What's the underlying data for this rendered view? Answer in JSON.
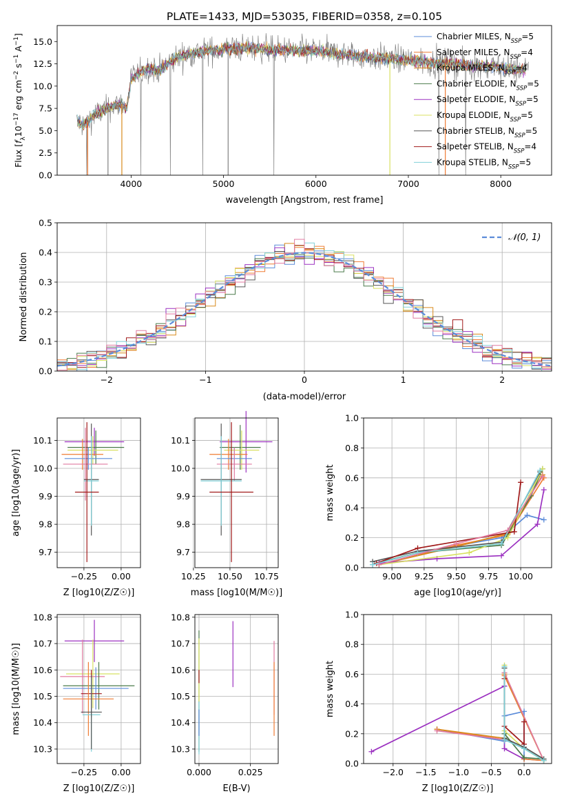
{
  "figure": {
    "title": "PLATE=1433, MJD=53035, FIBERID=0358, z=0.105"
  },
  "colors": {
    "Chabrier MILES": "#5b8bd9",
    "Salpeter MILES": "#ef7b33",
    "Kroupa MILES": "#d98a1b",
    "Chabrier ELODIE": "#4a7a4a",
    "Salpeter ELODIE": "#9b30c0",
    "Kroupa ELODIE": "#d8e060",
    "Chabrier STELIB": "#555555",
    "Salpeter STELIB": "#a01818",
    "Kroupa STELIB": "#7fd0d8",
    "pink": "#e07aa0",
    "data": "#808080"
  },
  "chart_data": [
    {
      "id": "spectrum",
      "type": "line",
      "xlabel": "wavelength [Angstrom, rest frame]",
      "ylabel": "Flux [f_λ 10^-17 erg cm^-2 s^-1 A^-1]",
      "xlim": [
        3200,
        8550
      ],
      "ylim": [
        0,
        16.8
      ],
      "xticks": [
        4000,
        5000,
        6000,
        7000,
        8000
      ],
      "yticks": [
        0.0,
        2.5,
        5.0,
        7.5,
        10.0,
        12.5,
        15.0
      ],
      "legend_position": "right",
      "legend": [
        {
          "imf": "Chabrier",
          "lib": "MILES",
          "nssp": "5"
        },
        {
          "imf": "Salpeter",
          "lib": "MILES",
          "nssp": "4"
        },
        {
          "imf": "Kroupa",
          "lib": "MILES",
          "nssp": "4"
        },
        {
          "imf": "Chabrier",
          "lib": "ELODIE",
          "nssp": "5"
        },
        {
          "imf": "Salpeter",
          "lib": "ELODIE",
          "nssp": "5"
        },
        {
          "imf": "Kroupa",
          "lib": "ELODIE",
          "nssp": "5"
        },
        {
          "imf": "Chabrier",
          "lib": "STELIB",
          "nssp": "5"
        },
        {
          "imf": "Salpeter",
          "lib": "STELIB",
          "nssp": "4"
        },
        {
          "imf": "Kroupa",
          "lib": "STELIB",
          "nssp": "5"
        }
      ],
      "continuum": {
        "x": [
          3410,
          3500,
          3600,
          3700,
          3800,
          3900,
          3950,
          4000,
          4100,
          4200,
          4300,
          4500,
          4700,
          4900,
          5100,
          5300,
          5500,
          5700,
          5900,
          6100,
          6300,
          6500,
          6700,
          6900,
          7100,
          7300,
          7500,
          7700,
          7900,
          8100,
          8300
        ],
        "y": [
          6.0,
          5.6,
          6.8,
          7.2,
          7.8,
          8.0,
          7.4,
          10.8,
          11.5,
          12.0,
          11.8,
          13.2,
          13.8,
          14.0,
          14.2,
          14.3,
          14.1,
          14.0,
          14.0,
          13.8,
          13.6,
          13.3,
          13.2,
          13.0,
          12.8,
          12.6,
          12.5,
          12.3,
          12.2,
          12.0,
          11.8
        ]
      }
    },
    {
      "id": "residuals",
      "type": "histogram",
      "xlabel": "(data-model)/error",
      "ylabel": "Normed distribution",
      "xlim": [
        -2.5,
        2.5
      ],
      "ylim": [
        0,
        0.5
      ],
      "xticks": [
        -2,
        -1,
        0,
        1,
        2
      ],
      "yticks": [
        0.0,
        0.1,
        0.2,
        0.3,
        0.4,
        0.5
      ],
      "bin_width": 0.1,
      "legend_label": "𝒩(0, 1)",
      "legend_position": "top-right",
      "curve": "normal(0,1)"
    },
    {
      "id": "age-vs-Z",
      "type": "errorbar",
      "xlabel": "Z [log10(Z/Z☉)]",
      "ylabel": "age [log10(age/yr)]",
      "xlim": [
        -0.43,
        0.13
      ],
      "ylim": [
        9.645,
        10.18
      ],
      "xticks": [
        -0.25,
        0.0
      ],
      "xtick_labels": [
        "−0.25",
        "0.00"
      ],
      "yticks": [
        9.7,
        9.8,
        9.9,
        10.0,
        10.1
      ],
      "points": [
        {
          "series": "Salpeter ELODIE",
          "x": -0.18,
          "xerr": 0.2,
          "y": 10.095,
          "yerr": 0.05
        },
        {
          "series": "Chabrier ELODIE",
          "x": -0.17,
          "xerr": 0.19,
          "y": 10.075,
          "yerr": 0.06
        },
        {
          "series": "Kroupa ELODIE",
          "x": -0.19,
          "xerr": 0.17,
          "y": 10.065,
          "yerr": 0.05
        },
        {
          "series": "Salpeter MILES",
          "x": -0.26,
          "xerr": 0.14,
          "y": 10.05,
          "yerr": 0.055
        },
        {
          "series": "Chabrier MILES",
          "x": -0.22,
          "xerr": 0.16,
          "y": 10.035,
          "yerr": 0.04
        },
        {
          "series": "pink",
          "x": -0.24,
          "xerr": 0.15,
          "y": 10.015,
          "yerr": 0.13
        },
        {
          "series": "Chabrier STELIB",
          "x": -0.2,
          "xerr": 0.05,
          "y": 9.96,
          "yerr": 0.2
        },
        {
          "series": "Kroupa STELIB",
          "x": -0.2,
          "xerr": 0.05,
          "y": 9.955,
          "yerr": 0.16
        },
        {
          "series": "Salpeter STELIB",
          "x": -0.23,
          "xerr": 0.08,
          "y": 9.915,
          "yerr": 0.25
        }
      ]
    },
    {
      "id": "age-vs-mass",
      "type": "errorbar",
      "xlabel": "mass [log10(M/M☉)]",
      "xlim": [
        10.26,
        10.83
      ],
      "ylim": [
        9.645,
        10.18
      ],
      "xticks": [
        10.25,
        10.5,
        10.75
      ],
      "xtick_labels": [
        "10.25",
        "10.50",
        "10.75"
      ],
      "yticks": [
        9.7,
        9.8,
        9.9,
        10.0,
        10.1
      ],
      "points": [
        {
          "series": "Salpeter ELODIE",
          "x": 10.61,
          "xerr": 0.18,
          "y": 10.095,
          "yerr": 0.11
        },
        {
          "series": "Chabrier ELODIE",
          "x": 10.57,
          "xerr": 0.14,
          "y": 10.075,
          "yerr": 0.08
        },
        {
          "series": "Kroupa ELODIE",
          "x": 10.58,
          "xerr": 0.12,
          "y": 10.065,
          "yerr": 0.07
        },
        {
          "series": "Salpeter MILES",
          "x": 10.49,
          "xerr": 0.13,
          "y": 10.05,
          "yerr": 0.055
        },
        {
          "series": "Chabrier MILES",
          "x": 10.53,
          "xerr": 0.12,
          "y": 10.035,
          "yerr": 0.04
        },
        {
          "series": "pink",
          "x": 10.53,
          "xerr": 0.12,
          "y": 10.015,
          "yerr": 0.06
        },
        {
          "series": "Chabrier STELIB",
          "x": 10.44,
          "xerr": 0.14,
          "y": 9.96,
          "yerr": 0.2
        },
        {
          "series": "Kroupa STELIB",
          "x": 10.44,
          "xerr": 0.14,
          "y": 9.955,
          "yerr": 0.16
        },
        {
          "series": "Salpeter STELIB",
          "x": 10.51,
          "xerr": 0.15,
          "y": 9.915,
          "yerr": 0.25
        }
      ]
    },
    {
      "id": "weight-vs-age",
      "type": "line",
      "xlabel": "age [log10(age/yr)]",
      "ylabel": "mass weight",
      "xlim": [
        8.78,
        10.24
      ],
      "ylim": [
        0,
        1.0
      ],
      "xticks": [
        9.0,
        9.25,
        9.5,
        9.75,
        10.0
      ],
      "xtick_labels": [
        "9.00",
        "9.25",
        "9.50",
        "9.75",
        "10.00"
      ],
      "yticks": [
        0.0,
        0.2,
        0.4,
        0.6,
        0.8,
        1.0
      ],
      "series": [
        {
          "name": "Chabrier MILES",
          "x": [
            8.85,
            9.2,
            9.85,
            10.05,
            10.18
          ],
          "y": [
            0.02,
            0.1,
            0.2,
            0.35,
            0.32
          ]
        },
        {
          "name": "Salpeter MILES",
          "x": [
            8.9,
            9.5,
            9.9,
            10.18
          ],
          "y": [
            0.02,
            0.15,
            0.22,
            0.6
          ]
        },
        {
          "name": "Kroupa MILES",
          "x": [
            8.9,
            9.5,
            9.9,
            10.17
          ],
          "y": [
            0.02,
            0.14,
            0.23,
            0.62
          ]
        },
        {
          "name": "Chabrier ELODIE",
          "x": [
            8.88,
            9.2,
            9.85,
            10.08,
            10.17
          ],
          "y": [
            0.03,
            0.1,
            0.15,
            0.48,
            0.66
          ]
        },
        {
          "name": "Salpeter ELODIE",
          "x": [
            8.9,
            9.35,
            9.85,
            10.13,
            10.18
          ],
          "y": [
            0.03,
            0.06,
            0.08,
            0.29,
            0.52
          ]
        },
        {
          "name": "Kroupa ELODIE",
          "x": [
            8.9,
            9.6,
            9.9,
            10.17
          ],
          "y": [
            0.02,
            0.1,
            0.2,
            0.66
          ]
        },
        {
          "name": "Chabrier STELIB",
          "x": [
            8.85,
            9.2,
            9.85,
            10.15
          ],
          "y": [
            0.04,
            0.11,
            0.17,
            0.64
          ]
        },
        {
          "name": "Salpeter STELIB",
          "x": [
            8.88,
            9.2,
            9.95,
            10.0
          ],
          "y": [
            0.03,
            0.13,
            0.24,
            0.57
          ]
        },
        {
          "name": "Kroupa STELIB",
          "x": [
            8.85,
            9.2,
            9.85,
            10.15
          ],
          "y": [
            0.02,
            0.1,
            0.16,
            0.65
          ]
        },
        {
          "name": "pink",
          "x": [
            8.9,
            9.5,
            9.9,
            10.17
          ],
          "y": [
            0.02,
            0.16,
            0.25,
            0.61
          ]
        }
      ]
    },
    {
      "id": "mass-vs-Z",
      "type": "errorbar",
      "xlabel": "Z [log10(Z/Z☉)]",
      "ylabel": "mass [log10(M/M☉)]",
      "xlim": [
        -0.43,
        0.13
      ],
      "ylim": [
        10.245,
        10.81
      ],
      "xticks": [
        -0.25,
        0.0
      ],
      "xtick_labels": [
        "−0.25",
        "0.00"
      ],
      "yticks": [
        10.3,
        10.4,
        10.5,
        10.6,
        10.7,
        10.8
      ],
      "points": [
        {
          "series": "Salpeter ELODIE",
          "x": -0.18,
          "xerr": 0.2,
          "y": 10.71,
          "yerr": 0.08
        },
        {
          "series": "Kroupa ELODIE",
          "x": -0.19,
          "xerr": 0.18,
          "y": 10.585,
          "yerr": 0.13
        },
        {
          "series": "pink",
          "x": -0.26,
          "xerr": 0.15,
          "y": 10.575,
          "yerr": 0.14
        },
        {
          "series": "Chabrier ELODIE",
          "x": -0.15,
          "xerr": 0.24,
          "y": 10.54,
          "yerr": 0.09
        },
        {
          "series": "Chabrier MILES",
          "x": -0.17,
          "xerr": 0.22,
          "y": 10.53,
          "yerr": 0.08
        },
        {
          "series": "Salpeter STELIB",
          "x": -0.2,
          "xerr": 0.07,
          "y": 10.51,
          "yerr": 0.09
        },
        {
          "series": "Salpeter MILES",
          "x": -0.22,
          "xerr": 0.17,
          "y": 10.49,
          "yerr": 0.14
        },
        {
          "series": "Kroupa STELIB",
          "x": -0.2,
          "xerr": 0.06,
          "y": 10.43,
          "yerr": 0.14
        },
        {
          "series": "Chabrier STELIB",
          "x": -0.2,
          "xerr": 0.07,
          "y": 10.44,
          "yerr": 0.14
        }
      ]
    },
    {
      "id": "mass-vs-EBV",
      "type": "errorbar",
      "xlabel": "E(B-V)",
      "xlim": [
        -0.002,
        0.0385
      ],
      "ylim": [
        10.245,
        10.81
      ],
      "xticks": [
        0.0,
        0.025
      ],
      "xtick_labels": [
        "0.000",
        "0.025"
      ],
      "yticks": [
        10.3,
        10.4,
        10.5,
        10.6,
        10.7,
        10.8
      ],
      "points": [
        {
          "series": "Chabrier ELODIE",
          "x": 0.0,
          "xerr": 0,
          "y": 10.52,
          "yerr": 0.23
        },
        {
          "series": "Kroupa ELODIE",
          "x": 0.0,
          "xerr": 0,
          "y": 10.6,
          "yerr": 0.12
        },
        {
          "series": "Salpeter STELIB",
          "x": 0.0,
          "xerr": 0,
          "y": 10.575,
          "yerr": 0.025
        },
        {
          "series": "Kroupa STELIB",
          "x": 0.0,
          "xerr": 0,
          "y": 10.38,
          "yerr": 0.1
        },
        {
          "series": "Chabrier MILES",
          "x": 0.0,
          "xerr": 0,
          "y": 10.4,
          "yerr": 0.05
        },
        {
          "series": "Salpeter ELODIE",
          "x": 0.0165,
          "xerr": 0,
          "y": 10.66,
          "yerr": 0.125
        },
        {
          "series": "pink",
          "x": 0.0365,
          "xerr": 0,
          "y": 10.57,
          "yerr": 0.14
        },
        {
          "series": "Salpeter MILES",
          "x": 0.0365,
          "xerr": 0,
          "y": 10.49,
          "yerr": 0.14
        }
      ]
    },
    {
      "id": "weight-vs-Z",
      "type": "line",
      "xlabel": "Z [log10(Z/Z☉)]",
      "ylabel": "mass weight",
      "xlim": [
        -2.45,
        0.42
      ],
      "ylim": [
        0,
        1.0
      ],
      "xticks": [
        -2.0,
        -1.5,
        -1.0,
        -0.5,
        0.0
      ],
      "xtick_labels": [
        "−2.0",
        "−1.5",
        "−1.0",
        "−0.5",
        "0.0"
      ],
      "yticks": [
        0.0,
        0.2,
        0.4,
        0.6,
        0.8,
        1.0
      ],
      "series": [
        {
          "name": "Salpeter ELODIE",
          "x": [
            -2.33,
            -0.3,
            -0.3,
            -0.3,
            0.0
          ],
          "y": [
            0.08,
            0.52,
            0.16,
            0.1,
            0.03
          ]
        },
        {
          "name": "Chabrier MILES",
          "x": [
            -1.33,
            -0.3,
            -0.3,
            0.0,
            0.0,
            0.3
          ],
          "y": [
            0.23,
            0.15,
            0.32,
            0.35,
            0.03,
            0.02
          ]
        },
        {
          "name": "Salpeter MILES",
          "x": [
            -1.33,
            -0.3,
            -0.3,
            0.3,
            0.0
          ],
          "y": [
            0.23,
            0.16,
            0.59,
            0.02,
            0.03
          ]
        },
        {
          "name": "Kroupa MILES",
          "x": [
            -1.33,
            -0.3,
            -0.3,
            0.3
          ],
          "y": [
            0.23,
            0.17,
            0.6,
            0.02
          ]
        },
        {
          "name": "pink",
          "x": [
            -1.33,
            -0.3,
            -0.3,
            0.3
          ],
          "y": [
            0.22,
            0.16,
            0.61,
            0.02
          ]
        },
        {
          "name": "Kroupa ELODIE",
          "x": [
            -0.3,
            -0.3,
            0.0,
            0.3
          ],
          "y": [
            0.66,
            0.22,
            0.1,
            0.02
          ]
        },
        {
          "name": "Chabrier ELODIE",
          "x": [
            -0.3,
            -0.3,
            0.0,
            0.3
          ],
          "y": [
            0.65,
            0.2,
            0.04,
            0.03
          ]
        },
        {
          "name": "Salpeter STELIB",
          "x": [
            -0.3,
            -0.3,
            0.0,
            0.0
          ],
          "y": [
            0.57,
            0.25,
            0.13,
            0.28
          ]
        },
        {
          "name": "Chabrier STELIB",
          "x": [
            -0.3,
            -0.3,
            0.0,
            0.3
          ],
          "y": [
            0.64,
            0.17,
            0.11,
            0.03
          ]
        },
        {
          "name": "Kroupa STELIB",
          "x": [
            -0.3,
            -0.3,
            0.0,
            0.3
          ],
          "y": [
            0.65,
            0.16,
            0.1,
            0.02
          ]
        }
      ]
    }
  ]
}
